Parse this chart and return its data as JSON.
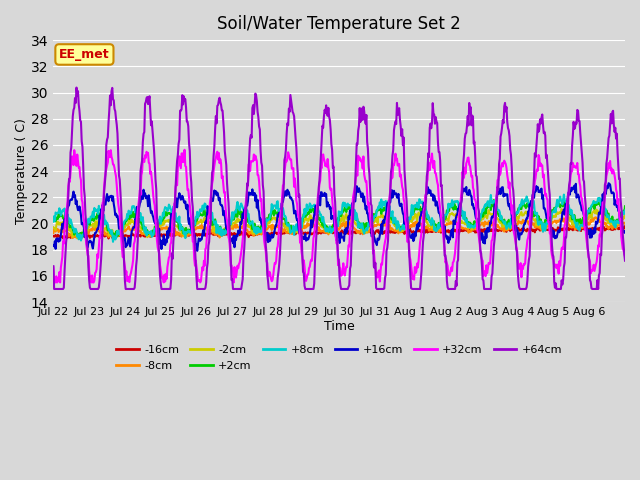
{
  "title": "Soil/Water Temperature Set 2",
  "xlabel": "Time",
  "ylabel": "Temperature ( C)",
  "ylim": [
    14,
    34
  ],
  "yticks": [
    14,
    16,
    18,
    20,
    22,
    24,
    26,
    28,
    30,
    32,
    34
  ],
  "bg_color": "#d8d8d8",
  "series": {
    "-16cm": {
      "color": "#cc0000",
      "lw": 1.5
    },
    "-8cm": {
      "color": "#ff8800",
      "lw": 1.5
    },
    "-2cm": {
      "color": "#cccc00",
      "lw": 1.5
    },
    "+2cm": {
      "color": "#00cc00",
      "lw": 1.5
    },
    "+8cm": {
      "color": "#00cccc",
      "lw": 1.5
    },
    "+16cm": {
      "color": "#0000cc",
      "lw": 1.5
    },
    "+32cm": {
      "color": "#ff00ff",
      "lw": 1.5
    },
    "+64cm": {
      "color": "#9900cc",
      "lw": 1.5
    }
  },
  "annotation_text": "EE_met",
  "annotation_color": "#cc0000",
  "annotation_bg": "#ffff99",
  "annotation_border": "#cc8800",
  "n_days": 16,
  "tick_labels": [
    "Jul 22",
    "Jul 23",
    "Jul 24",
    "Jul 25",
    "Jul 26",
    "Jul 27",
    "Jul 28",
    "Jul 29",
    "Jul 30",
    "Jul 31",
    "Aug 1",
    "Aug 2",
    "Aug 3",
    "Aug 4",
    "Aug 5",
    "Aug 6"
  ]
}
